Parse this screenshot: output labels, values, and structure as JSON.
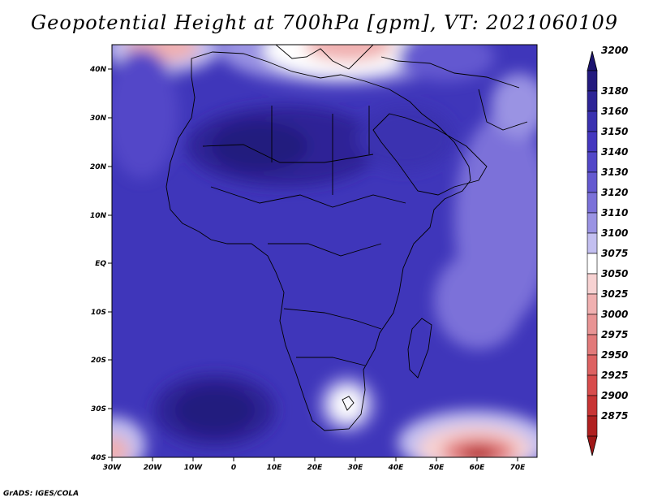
{
  "title": "Geopotential Height at 700hPa [gpm], VT: 2021060109",
  "footer": "GrADS: IGES/COLA",
  "axes": {
    "lon_labels": [
      "30W",
      "20W",
      "10W",
      "0",
      "10E",
      "20E",
      "30E",
      "40E",
      "50E",
      "60E",
      "70E"
    ],
    "lat_labels": [
      "40N",
      "30N",
      "20N",
      "10N",
      "EQ",
      "10S",
      "20S",
      "30S",
      "40S"
    ]
  },
  "colorbar": {
    "levels": [
      "3200",
      "3180",
      "3160",
      "3150",
      "3140",
      "3130",
      "3120",
      "3110",
      "3100",
      "3075",
      "3050",
      "3025",
      "3000",
      "2975",
      "2950",
      "2925",
      "2900",
      "2875"
    ],
    "colors": [
      "#231a7e",
      "#2d2496",
      "#3a31b0",
      "#4437bf",
      "#5247c8",
      "#6459d0",
      "#7b71d9",
      "#9a93e3",
      "#c3bff0",
      "#ffffff",
      "#f7d2d2",
      "#f0b0b0",
      "#e89494",
      "#e27a7a",
      "#dd6262",
      "#d84c4c",
      "#c83434",
      "#b02020"
    ],
    "top_arrow_color": "#1c1470",
    "bottom_arrow_color": "#a01818"
  }
}
